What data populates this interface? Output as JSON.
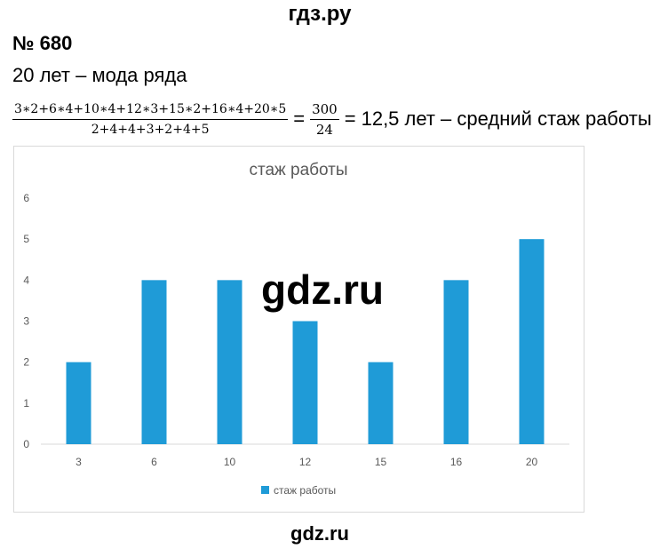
{
  "header": {
    "site": "гдз.ру"
  },
  "task": {
    "number": "№ 680"
  },
  "mode_line": "20 лет – мода ряда",
  "formula": {
    "numerator": "3∗2+6∗4+10∗4+12∗3+15∗2+16∗4+20∗5",
    "denominator": "2+4+4+3+2+4+5",
    "equals1": "=",
    "frac2_num": "300",
    "frac2_den": "24",
    "equals2": "=",
    "result": "12,5 лет – средний стаж работы"
  },
  "watermark": "gdz.ru",
  "footer": {
    "site": "gdz.ru"
  },
  "chart_data": {
    "type": "bar",
    "title": "стаж работы",
    "categories": [
      "3",
      "6",
      "10",
      "12",
      "15",
      "16",
      "20"
    ],
    "series": [
      {
        "name": "стаж работы",
        "values": [
          2,
          4,
          4,
          3,
          2,
          4,
          5
        ],
        "color": "#1f9bd7"
      }
    ],
    "ylim": [
      0,
      6
    ],
    "yticks": [
      "0",
      "1",
      "2",
      "3",
      "4",
      "5",
      "6"
    ],
    "grid": false,
    "legend": "bottom",
    "xlabel": "",
    "ylabel": ""
  }
}
